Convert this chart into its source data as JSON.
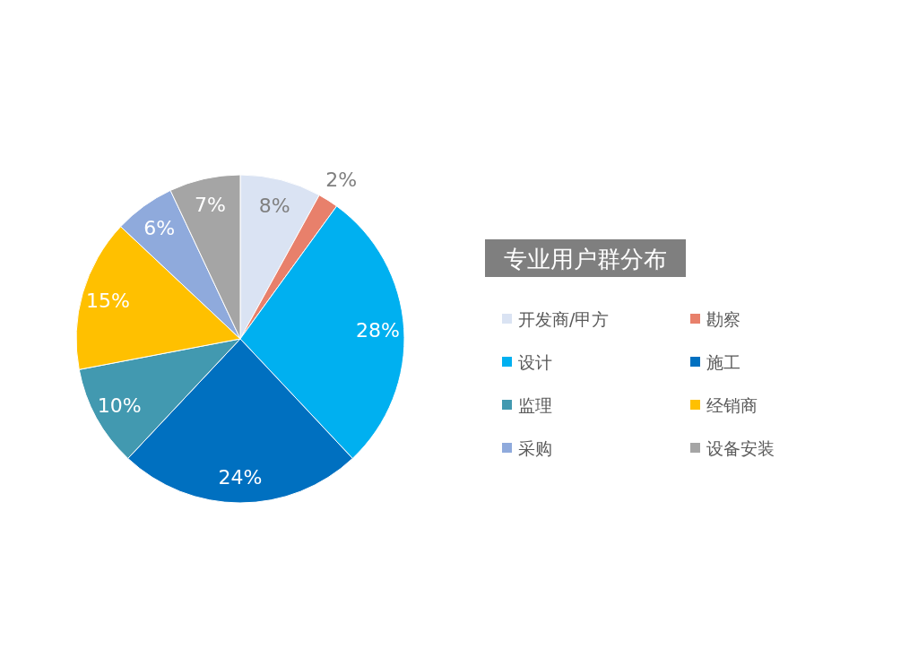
{
  "chart_data": {
    "type": "pie",
    "title": "专业用户群分布",
    "legend": "right",
    "categories": [
      "开发商/甲方",
      "勘察",
      "设计",
      "施工",
      "监理",
      "经销商",
      "采购",
      "设备安装"
    ],
    "values": [
      8,
      2,
      28,
      24,
      10,
      15,
      6,
      7
    ],
    "value_labels": [
      "8%",
      "2%",
      "28%",
      "24%",
      "10%",
      "15%",
      "6%",
      "7%"
    ],
    "colors": [
      "#dae3f3",
      "#e8806b",
      "#00b0f0",
      "#0070c0",
      "#4299b0",
      "#ffc000",
      "#8faadc",
      "#a5a5a5"
    ]
  }
}
